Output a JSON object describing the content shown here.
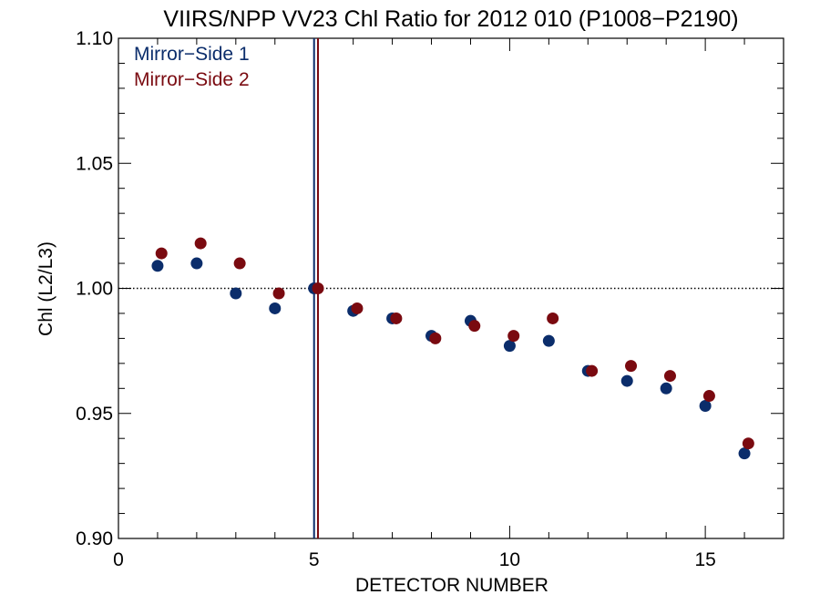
{
  "chart_data": {
    "type": "scatter",
    "title": "VIIRS/NPP VV23 Chl Ratio for 2012 010 (P1008−P2190)",
    "xlabel": "DETECTOR NUMBER",
    "ylabel": "Chl (L2/L3)",
    "xlim": [
      0,
      17
    ],
    "ylim": [
      0.9,
      1.1
    ],
    "x_ticks": [
      0,
      5,
      10,
      15
    ],
    "x_tick_labels": [
      "0",
      "5",
      "10",
      "15"
    ],
    "y_ticks": [
      0.9,
      0.95,
      1.0,
      1.05,
      1.1
    ],
    "y_tick_labels": [
      "0.90",
      "0.95",
      "1.00",
      "1.05",
      "1.10"
    ],
    "reference_line": {
      "y": 1.0,
      "style": "dotted"
    },
    "vertical_markers": [
      {
        "x": 5.0,
        "color": "#0b2d6b"
      },
      {
        "x": 5.1,
        "color": "#7a0a10"
      }
    ],
    "legend": "top-left",
    "grid": false,
    "series": [
      {
        "name": "Mirror−Side 1",
        "color": "#0b2d6b",
        "x": [
          1,
          2,
          3,
          4,
          5,
          6,
          7,
          8,
          9,
          10,
          11,
          12,
          13,
          14,
          15,
          16
        ],
        "y": [
          1.009,
          1.01,
          0.998,
          0.992,
          1.0,
          0.991,
          0.988,
          0.981,
          0.987,
          0.977,
          0.979,
          0.967,
          0.963,
          0.96,
          0.953,
          0.934
        ]
      },
      {
        "name": "Mirror−Side 2",
        "color": "#7a0a10",
        "x": [
          1.1,
          2.1,
          3.1,
          4.1,
          5.1,
          6.1,
          7.1,
          8.1,
          9.1,
          10.1,
          11.1,
          12.1,
          13.1,
          14.1,
          15.1,
          16.1
        ],
        "y": [
          1.014,
          1.018,
          1.01,
          0.998,
          1.0,
          0.992,
          0.988,
          0.98,
          0.985,
          0.981,
          0.988,
          0.967,
          0.969,
          0.965,
          0.957,
          0.938
        ]
      }
    ]
  }
}
